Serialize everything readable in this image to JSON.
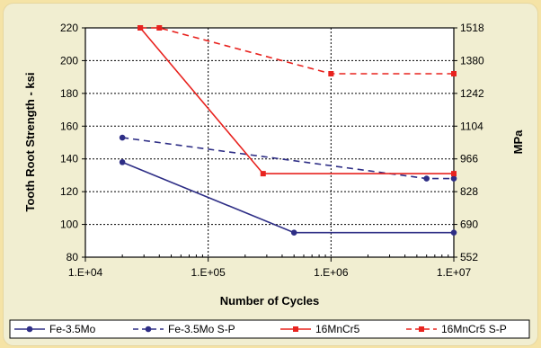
{
  "chart_data": {
    "type": "line",
    "title": "",
    "xlabel": "Number of Cycles",
    "ylabel": "Tooth Root Strength - ksi",
    "ylabel_right": "MPa",
    "xscale": "log",
    "xlim": [
      10000,
      10000000
    ],
    "ylim": [
      80,
      220
    ],
    "x_ticks": [
      10000,
      100000,
      1000000,
      10000000
    ],
    "x_tick_labels": [
      "1.E+04",
      "1.E+05",
      "1.E+06",
      "1.E+07"
    ],
    "y_ticks": [
      80,
      100,
      120,
      140,
      160,
      180,
      200,
      220
    ],
    "y_tick_labels": [
      "80",
      "100",
      "120",
      "140",
      "160",
      "180",
      "200",
      "220"
    ],
    "y_right_ticks": [
      552,
      690,
      828,
      966,
      1104,
      1242,
      1380,
      1518
    ],
    "y_right_tick_labels": [
      "552",
      "690",
      "828",
      "966",
      "1104",
      "1242",
      "1380",
      "1518"
    ],
    "grid": true,
    "legend_position": "bottom",
    "series": [
      {
        "name": "Fe-3.5Mo",
        "color": "#2e2e86",
        "line": "solid",
        "marker": "circle",
        "points": [
          [
            20000,
            138
          ],
          [
            500000,
            95
          ],
          [
            10000000,
            95
          ]
        ]
      },
      {
        "name": "Fe-3.5Mo S-P",
        "color": "#2e2e86",
        "line": "dashed",
        "marker": "circle",
        "points": [
          [
            20000,
            153
          ],
          [
            6000000,
            128
          ],
          [
            10000000,
            128
          ]
        ]
      },
      {
        "name": "16MnCr5",
        "color": "#e8231f",
        "line": "solid",
        "marker": "square",
        "points": [
          [
            28000,
            220
          ],
          [
            280000,
            131
          ],
          [
            10000000,
            131
          ]
        ]
      },
      {
        "name": "16MnCr5 S-P",
        "color": "#e8231f",
        "line": "dashed",
        "marker": "square",
        "points": [
          [
            28000,
            220
          ],
          [
            40000,
            220
          ],
          [
            1000000,
            192
          ],
          [
            10000000,
            192
          ]
        ]
      }
    ]
  }
}
